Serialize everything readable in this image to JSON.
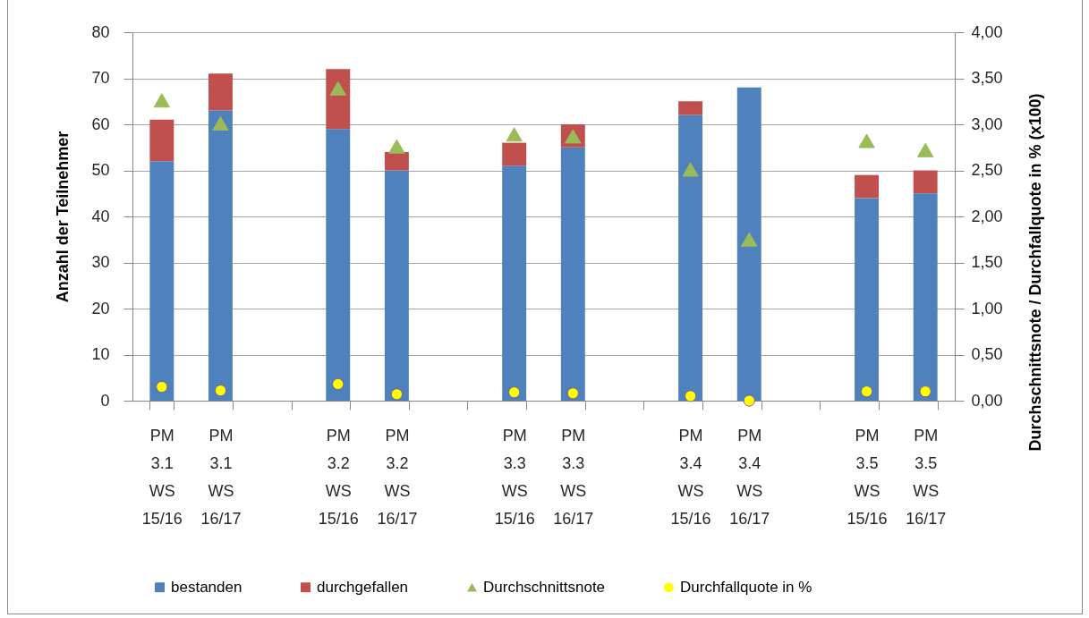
{
  "chart_data": {
    "type": "bar",
    "stacked": true,
    "categories": [
      "PM 3.1 WS 15/16",
      "PM 3.1 WS 16/17",
      null,
      "PM 3.2 WS 15/16",
      "PM 3.2 WS 16/17",
      null,
      "PM 3.3 WS 15/16",
      "PM 3.3 WS 16/17",
      null,
      "PM 3.4 WS 15/16",
      "PM 3.4 WS 16/17",
      null,
      "PM 3.5 WS 15/16",
      "PM 3.5 WS 16/17"
    ],
    "series": [
      {
        "name": "bestanden",
        "color": "#4f81bd",
        "values": [
          52,
          63,
          null,
          59,
          50,
          null,
          51,
          55,
          null,
          62,
          68,
          null,
          44,
          45
        ]
      },
      {
        "name": "durchgefallen",
        "color": "#c0504d",
        "values": [
          9,
          8,
          null,
          13,
          4,
          null,
          5,
          5,
          null,
          3,
          0,
          null,
          5,
          5
        ]
      },
      {
        "name": "Durchschnittsnote",
        "type": "scatter",
        "axis": "y2",
        "marker": "triangle",
        "color": "#9bbb59",
        "values": [
          3.26,
          3.01,
          null,
          3.39,
          2.76,
          null,
          2.89,
          2.87,
          null,
          2.51,
          1.75,
          null,
          2.82,
          2.72
        ]
      },
      {
        "name": "Durchfallquote in %",
        "type": "scatter",
        "axis": "y2",
        "marker": "circle",
        "color": "#ffff00",
        "values": [
          0.15,
          0.11,
          null,
          0.18,
          0.07,
          null,
          0.09,
          0.08,
          null,
          0.05,
          0.0,
          null,
          0.1,
          0.1
        ]
      }
    ],
    "ylabel": "Anzahl der Teilnehmer",
    "y2label": "Durchschnittsnote / Durchfallquote in % (x100)",
    "ylim": [
      0,
      80
    ],
    "yticks": [
      0,
      10,
      20,
      30,
      40,
      50,
      60,
      70,
      80
    ],
    "y2lim": [
      0,
      4
    ],
    "y2ticks": [
      {
        "value": 0,
        "label": "0,00"
      },
      {
        "value": 0.5,
        "label": "0,50"
      },
      {
        "value": 1,
        "label": "1,00"
      },
      {
        "value": 1.5,
        "label": "1,50"
      },
      {
        "value": 2,
        "label": "2,00"
      },
      {
        "value": 2.5,
        "label": "2,50"
      },
      {
        "value": 3,
        "label": "3,00"
      },
      {
        "value": 3.5,
        "label": "3,50"
      },
      {
        "value": 4,
        "label": "4,00"
      }
    ],
    "grid": "y",
    "legend": "bottom"
  }
}
